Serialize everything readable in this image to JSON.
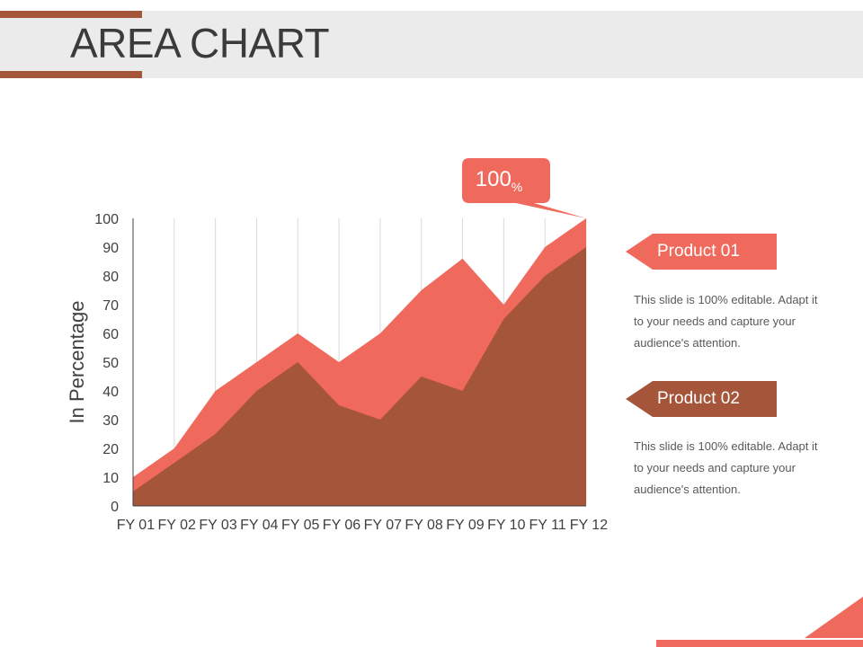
{
  "slide": {
    "title": "AREA CHART"
  },
  "colors": {
    "product_01": "#f0695d",
    "product_02": "#a5553a",
    "title_band": "#ebebeb",
    "accent": "#a5553a"
  },
  "callout": {
    "value": "100",
    "unit": "%"
  },
  "legend": [
    {
      "label": "Product 01",
      "description": "This slide is 100% editable. Adapt it to your needs and capture your audience's attention."
    },
    {
      "label": "Product 02",
      "description": "This slide is 100% editable. Adapt it to your needs and capture your audience's attention."
    }
  ],
  "chart_data": {
    "type": "area",
    "categories": [
      "FY 01",
      "FY 02",
      "FY 03",
      "FY 04",
      "FY 05",
      "FY 06",
      "FY 07",
      "FY 08",
      "FY 09",
      "FY 10",
      "FY 11",
      "FY 12"
    ],
    "series": [
      {
        "name": "Product 01",
        "values": [
          10,
          20,
          40,
          50,
          60,
          50,
          60,
          75,
          86,
          70,
          90,
          100
        ]
      },
      {
        "name": "Product 02",
        "values": [
          5,
          15,
          25,
          40,
          50,
          35,
          30,
          45,
          40,
          65,
          80,
          90
        ]
      }
    ],
    "ylabel": "In Percentage",
    "xlabel": "",
    "ylim": [
      0,
      100
    ],
    "yticks": [
      0,
      10,
      20,
      30,
      40,
      50,
      60,
      70,
      80,
      90,
      100
    ],
    "grid": "vertical",
    "legend_position": "right"
  }
}
